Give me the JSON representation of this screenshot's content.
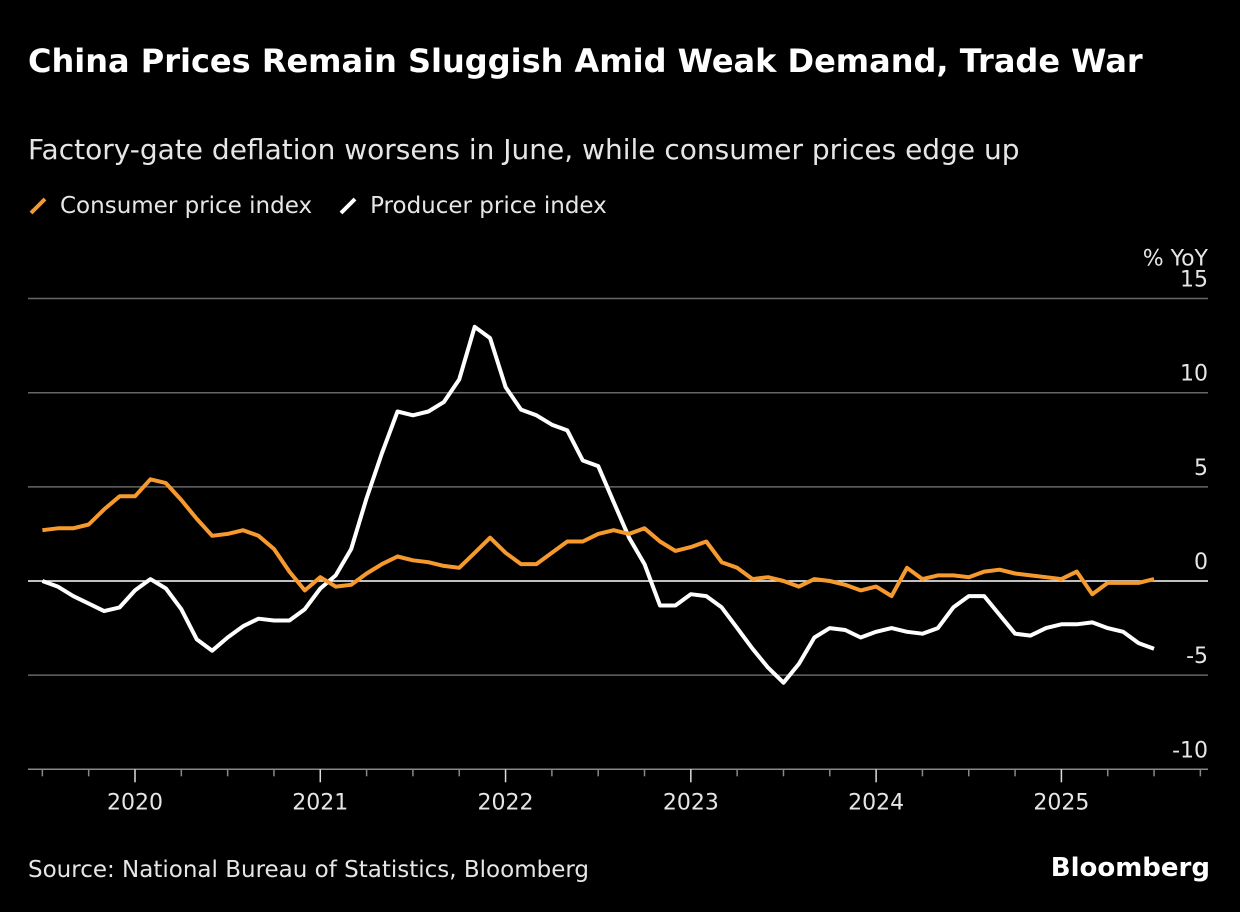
{
  "title": "China Prices Remain Sluggish Amid Weak Demand, Trade War",
  "subtitle": "Factory-gate deflation worsens in June, while consumer prices edge up",
  "source": "Source: National Bureau of Statistics, Bloomberg",
  "brand": "Bloomberg",
  "chart_data": {
    "type": "line",
    "ylabel": "% YoY",
    "ylim": [
      -10,
      15
    ],
    "yticks": [
      15,
      10,
      5,
      0,
      -5,
      -10
    ],
    "xticks": [
      "2020",
      "2021",
      "2022",
      "2023",
      "2024",
      "2025"
    ],
    "grid": true,
    "legend": "top-left",
    "x_start": "2019-06",
    "x_end": "2025-06",
    "frequency": "monthly",
    "series": [
      {
        "name": "Consumer price index",
        "color": "#f79a2e",
        "values": [
          2.7,
          2.8,
          2.8,
          3.0,
          3.8,
          4.5,
          4.5,
          5.4,
          5.2,
          4.3,
          3.3,
          2.4,
          2.5,
          2.7,
          2.4,
          1.7,
          0.5,
          -0.5,
          0.2,
          -0.3,
          -0.2,
          0.4,
          0.9,
          1.3,
          1.1,
          1.0,
          0.8,
          0.7,
          1.5,
          2.3,
          1.5,
          0.9,
          0.9,
          1.5,
          2.1,
          2.1,
          2.5,
          2.7,
          2.5,
          2.8,
          2.1,
          1.6,
          1.8,
          2.1,
          1.0,
          0.7,
          0.1,
          0.2,
          0.0,
          -0.3,
          0.1,
          0.0,
          -0.2,
          -0.5,
          -0.3,
          -0.8,
          0.7,
          0.1,
          0.3,
          0.3,
          0.2,
          0.5,
          0.6,
          0.4,
          0.3,
          0.2,
          0.1,
          0.5,
          -0.7,
          -0.1,
          -0.1,
          -0.1,
          0.1
        ]
      },
      {
        "name": "Producer price index",
        "color": "#ffffff",
        "values": [
          0.0,
          -0.3,
          -0.8,
          -1.2,
          -1.6,
          -1.4,
          -0.5,
          0.1,
          -0.4,
          -1.5,
          -3.1,
          -3.7,
          -3.0,
          -2.4,
          -2.0,
          -2.1,
          -2.1,
          -1.5,
          -0.4,
          0.3,
          1.7,
          4.4,
          6.8,
          9.0,
          8.8,
          9.0,
          9.5,
          10.7,
          13.5,
          12.9,
          10.3,
          9.1,
          8.8,
          8.3,
          8.0,
          6.4,
          6.1,
          4.2,
          2.3,
          0.9,
          -1.3,
          -1.3,
          -0.7,
          -0.8,
          -1.4,
          -2.5,
          -3.6,
          -4.6,
          -5.4,
          -4.4,
          -3.0,
          -2.5,
          -2.6,
          -3.0,
          -2.7,
          -2.5,
          -2.7,
          -2.8,
          -2.5,
          -1.4,
          -0.8,
          -0.8,
          -1.8,
          -2.8,
          -2.9,
          -2.5,
          -2.3,
          -2.3,
          -2.2,
          -2.5,
          -2.7,
          -3.3,
          -3.6
        ]
      }
    ]
  }
}
